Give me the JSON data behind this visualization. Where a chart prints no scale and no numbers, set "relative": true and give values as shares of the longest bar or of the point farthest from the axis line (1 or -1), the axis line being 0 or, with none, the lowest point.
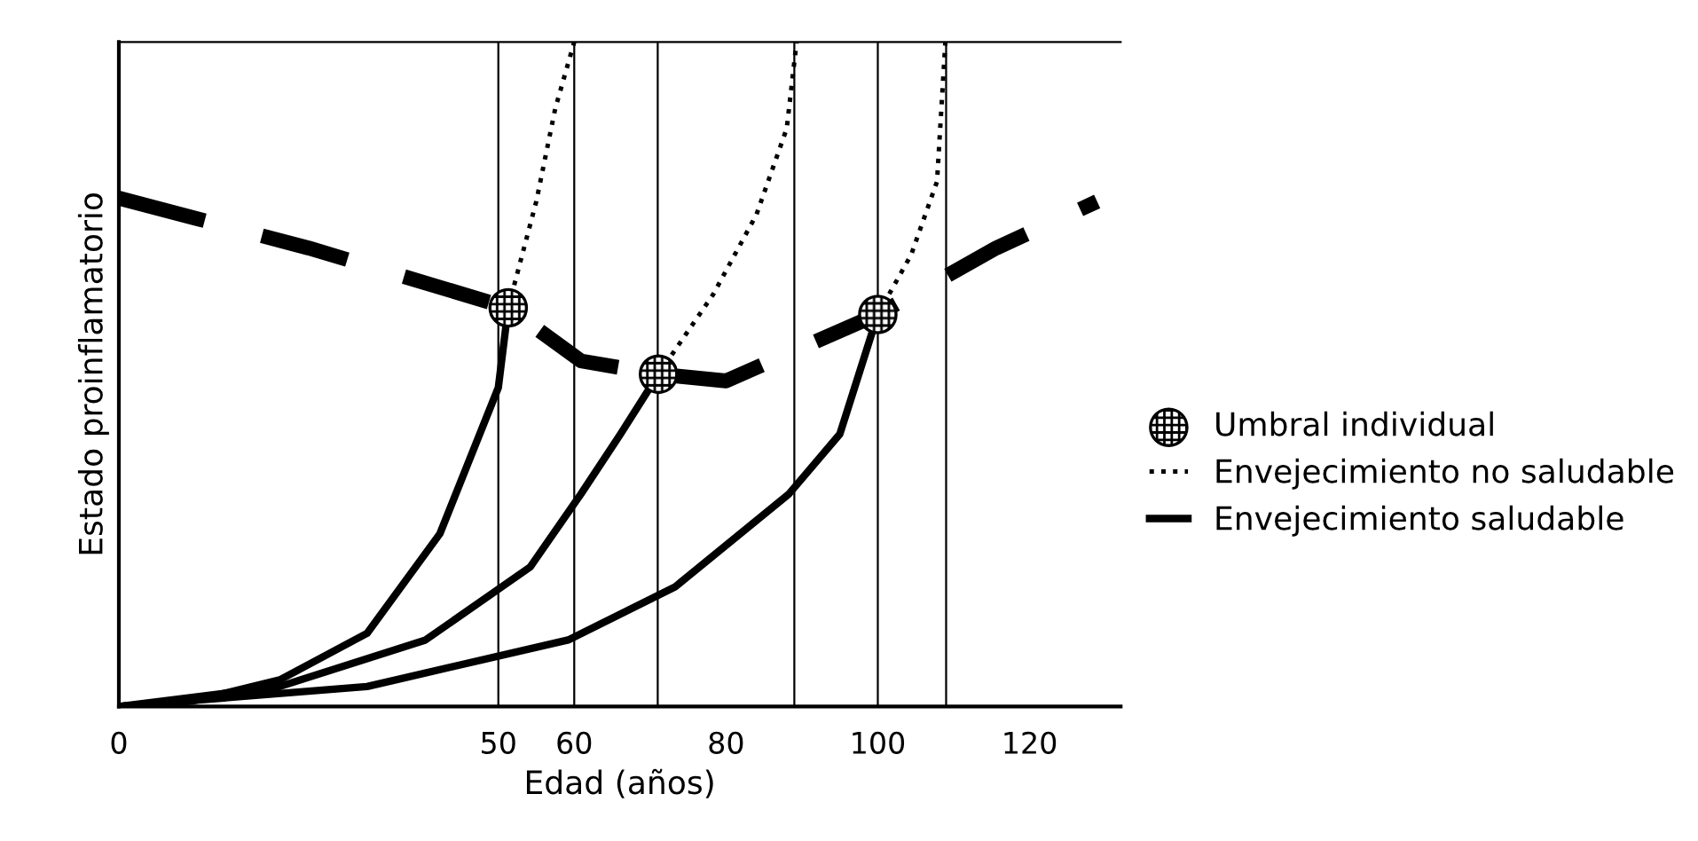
{
  "chart_data": {
    "type": "line",
    "relative": true,
    "xlabel": "Edad (años)",
    "ylabel": "Estado proinflamatorio",
    "xlim": [
      0,
      132
    ],
    "xticks": [
      0,
      50,
      60,
      80,
      100,
      120
    ],
    "legend": "right",
    "grid": false,
    "ref_lines": [
      {
        "axis": "x",
        "value": 50,
        "color": "#000000"
      },
      {
        "axis": "x",
        "value": 60,
        "color": "#000000"
      },
      {
        "axis": "x",
        "value": 71,
        "color": "#000000"
      },
      {
        "axis": "x",
        "value": 89,
        "color": "#000000"
      },
      {
        "axis": "x",
        "value": 100,
        "color": "#000000"
      },
      {
        "axis": "x",
        "value": 109,
        "color": "#000000"
      }
    ],
    "series": [
      {
        "name": "Umbral individual",
        "type": "scatter",
        "marker": "circle",
        "color": "#000000",
        "x": [
          51.3,
          71.1,
          100
        ],
        "values": [
          0.6,
          0.5,
          0.59
        ]
      },
      {
        "name": "Envejecimiento no saludable",
        "line_style": "dotted",
        "color": "#000000",
        "x": [
          51.3,
          55,
          57.5,
          60
        ],
        "values": [
          0.6,
          0.76,
          0.9,
          1.0
        ]
      },
      {
        "line_style": "dotted",
        "color": "#000000",
        "x": [
          71.1,
          78.3,
          84,
          88,
          89.3
        ],
        "values": [
          0.5,
          0.62,
          0.74,
          0.87,
          1.0
        ]
      },
      {
        "line_style": "dotted",
        "color": "#000000",
        "x": [
          100,
          104.4,
          107.8,
          108.9
        ],
        "values": [
          0.59,
          0.68,
          0.79,
          1.0
        ]
      },
      {
        "name": "Envejecimiento saludable",
        "line_style": "solid",
        "color": "#000000",
        "x": [
          0,
          9.6,
          21.2,
          32.7,
          42.3,
          50,
          51.3
        ],
        "values": [
          0,
          0.008,
          0.04,
          0.11,
          0.26,
          0.48,
          0.6
        ]
      },
      {
        "line_style": "solid",
        "color": "#000000",
        "x": [
          0,
          21.2,
          40.4,
          54.2,
          60.9,
          66.1,
          71.1
        ],
        "values": [
          0,
          0.03,
          0.1,
          0.21,
          0.32,
          0.41,
          0.5
        ]
      },
      {
        "line_style": "solid",
        "color": "#000000",
        "x": [
          0,
          32.7,
          59.2,
          73.3,
          88.3,
          95,
          100
        ],
        "values": [
          0,
          0.03,
          0.1,
          0.18,
          0.32,
          0.41,
          0.59
        ]
      },
      {
        "line_style": "dashed",
        "color": "#000000",
        "x": [
          0,
          25,
          51.3,
          60.9,
          71.1,
          80,
          90,
          100,
          115.6,
          128.9
        ],
        "values": [
          0.765,
          0.69,
          0.6,
          0.52,
          0.5,
          0.49,
          0.54,
          0.59,
          0.69,
          0.76
        ]
      }
    ]
  }
}
